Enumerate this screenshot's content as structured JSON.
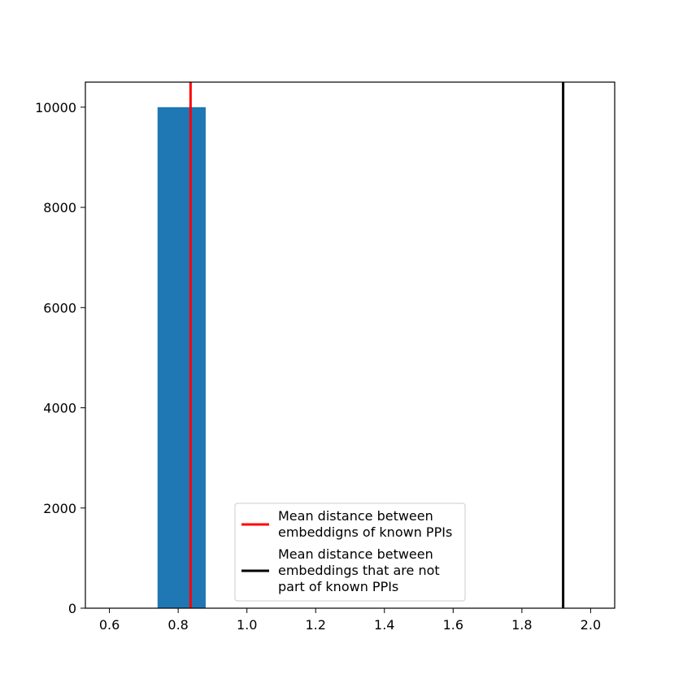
{
  "chart_data": {
    "type": "bar",
    "title": "",
    "xlabel": "",
    "ylabel": "",
    "xlim": [
      0.53,
      2.07
    ],
    "ylim": [
      0,
      10500
    ],
    "xticks": [
      0.6,
      0.8,
      1.0,
      1.2,
      1.4,
      1.6,
      1.8,
      2.0
    ],
    "xtick_labels": [
      "0.6",
      "0.8",
      "1.0",
      "1.2",
      "1.4",
      "1.6",
      "1.8",
      "2.0"
    ],
    "yticks": [
      0,
      2000,
      4000,
      6000,
      8000,
      10000
    ],
    "ytick_labels": [
      "0",
      "2000",
      "4000",
      "6000",
      "8000",
      "10000"
    ],
    "bars": [
      {
        "x_start": 0.74,
        "x_end": 0.88,
        "value": 10000
      }
    ],
    "bar_color": "#1f77b4",
    "vlines": [
      {
        "x": 0.836,
        "color": "#ff0000"
      },
      {
        "x": 1.92,
        "color": "#000000"
      }
    ],
    "grid": false,
    "legend": {
      "placement": "lower center",
      "entries": [
        {
          "color": "#ff0000",
          "lines": [
            "Mean distance between",
            "embeddigns of known PPIs"
          ]
        },
        {
          "color": "#000000",
          "lines": [
            "Mean distance between",
            "embeddings that are not",
            "part of known PPIs"
          ]
        }
      ]
    }
  }
}
